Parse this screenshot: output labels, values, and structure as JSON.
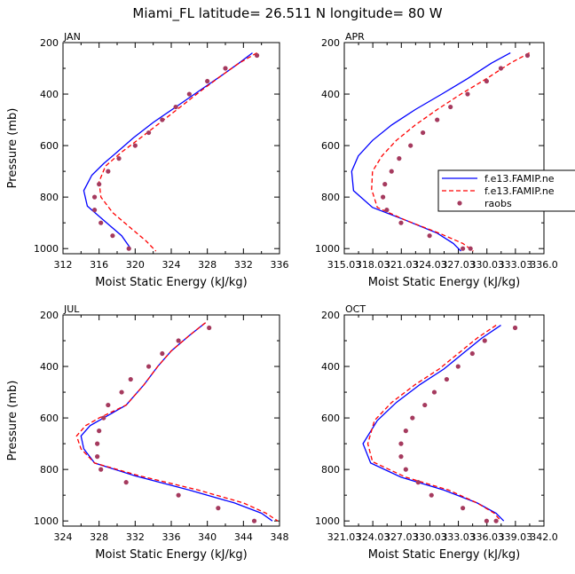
{
  "title": "Miami_FL  latitude= 26.511 N longitude= 80 W",
  "colors": {
    "solid": "#0000ff",
    "dashed": "#ff0000",
    "obs": "#a53a5e"
  },
  "legend": [
    {
      "label": "f.e13.FAMIP.ne",
      "style": "solid"
    },
    {
      "label": "f.e13.FAMIP.ne",
      "style": "dashed"
    },
    {
      "label": "raobs",
      "style": "dots"
    }
  ],
  "chart_data": [
    {
      "type": "line",
      "panel_label": "JAN",
      "xlabel": "Moist Static Energy (kJ/kg)",
      "ylabel": "Pressure (mb)",
      "xlim": [
        312,
        336
      ],
      "ylim": [
        1020,
        200
      ],
      "xtick_values": [
        312,
        316,
        320,
        324,
        328,
        332,
        336
      ],
      "xtick_labels": [
        "312",
        "316",
        "320",
        "324",
        "328",
        "332",
        "336"
      ],
      "ytick_values": [
        200,
        400,
        600,
        800,
        1000
      ],
      "ytick_labels": [
        "200",
        "400",
        "600",
        "800",
        "1000"
      ],
      "series": [
        {
          "style": "solid",
          "x": [
            333.0,
            331.5,
            329.5,
            327.0,
            324.5,
            322.0,
            319.8,
            318.0,
            316.5,
            315.2,
            314.3,
            314.7,
            316.5,
            318.5,
            319.5
          ],
          "y": [
            240,
            280,
            330,
            390,
            450,
            510,
            570,
            625,
            670,
            715,
            775,
            835,
            890,
            950,
            1000
          ]
        },
        {
          "style": "dashed",
          "x": [
            333.5,
            331.5,
            329.5,
            327.2,
            325.0,
            322.8,
            320.6,
            318.5,
            316.7,
            316.0,
            316.2,
            317.5,
            319.5,
            321.2,
            322.3
          ],
          "y": [
            240,
            280,
            330,
            390,
            450,
            510,
            570,
            625,
            680,
            740,
            800,
            860,
            920,
            970,
            1010
          ]
        },
        {
          "style": "dots",
          "x": [
            333.5,
            330.0,
            328.0,
            326.0,
            324.5,
            323.0,
            321.5,
            320.0,
            318.2,
            317.0,
            316.0,
            315.5,
            315.5,
            316.2,
            317.5,
            319.3
          ],
          "y": [
            250,
            300,
            350,
            400,
            450,
            500,
            550,
            600,
            650,
            700,
            750,
            800,
            850,
            900,
            950,
            1000
          ]
        }
      ]
    },
    {
      "type": "line",
      "panel_label": "APR",
      "xlabel": "Moist Static Energy (kJ/kg)",
      "ylabel": "",
      "xlim": [
        315.03,
        336.03
      ],
      "ylim": [
        1020,
        200
      ],
      "xtick_values": [
        315.03,
        318.03,
        321.03,
        324.03,
        327.03,
        330.03,
        333.03,
        336.03
      ],
      "xtick_labels": [
        "315.03",
        "318.03",
        "321.03",
        "324.03",
        "327.03",
        "330.03",
        "333.03",
        "336.0"
      ],
      "ytick_values": [
        200,
        400,
        600,
        800,
        1000
      ],
      "ytick_labels": [
        "200",
        "400",
        "600",
        "800",
        "1000"
      ],
      "series": [
        {
          "style": "solid",
          "x": [
            332.5,
            330.5,
            328.0,
            325.3,
            322.5,
            320.0,
            318.0,
            316.5,
            315.8,
            316.0,
            318.0,
            321.5,
            324.8,
            326.5,
            327.3
          ],
          "y": [
            240,
            280,
            340,
            400,
            460,
            520,
            580,
            640,
            700,
            775,
            840,
            890,
            940,
            980,
            1010
          ]
        },
        {
          "style": "dashed",
          "x": [
            334.5,
            332.5,
            330.0,
            327.3,
            324.8,
            322.5,
            320.5,
            319.0,
            318.0,
            317.9,
            318.5,
            321.5,
            325.0,
            327.5,
            328.6
          ],
          "y": [
            240,
            280,
            340,
            400,
            460,
            520,
            580,
            640,
            700,
            770,
            840,
            890,
            940,
            980,
            1010
          ]
        },
        {
          "style": "dots",
          "x": [
            334.3,
            331.5,
            330.0,
            328.0,
            326.2,
            324.8,
            323.3,
            322.0,
            320.8,
            320.0,
            319.3,
            319.1,
            319.5,
            321.0,
            324.0,
            327.5,
            328.3
          ],
          "y": [
            250,
            300,
            350,
            400,
            450,
            500,
            550,
            600,
            650,
            700,
            750,
            800,
            850,
            900,
            950,
            1000,
            1000
          ]
        }
      ]
    },
    {
      "type": "line",
      "panel_label": "JUL",
      "xlabel": "Moist Static Energy (kJ/kg)",
      "ylabel": "Pressure (mb)",
      "xlim": [
        324,
        348
      ],
      "ylim": [
        1020,
        200
      ],
      "xtick_values": [
        324,
        328,
        332,
        336,
        340,
        344,
        348
      ],
      "xtick_labels": [
        "324",
        "328",
        "332",
        "336",
        "340",
        "344",
        "348"
      ],
      "series": [
        {
          "style": "solid",
          "x": [
            339.8,
            338.0,
            336.0,
            334.5,
            333.0,
            331.0,
            328.5,
            327.0,
            326.0,
            326.3,
            327.5,
            332.0,
            338.0,
            343.0,
            346.0,
            347.2
          ],
          "y": [
            230,
            280,
            340,
            400,
            470,
            550,
            600,
            630,
            670,
            720,
            775,
            825,
            880,
            930,
            970,
            1000
          ]
        },
        {
          "style": "dashed",
          "x": [
            339.8,
            338.0,
            336.0,
            334.5,
            333.0,
            331.0,
            328.0,
            326.5,
            325.5,
            326.0,
            327.5,
            332.5,
            339.0,
            344.0,
            346.5,
            347.8
          ],
          "y": [
            230,
            280,
            340,
            400,
            470,
            550,
            600,
            630,
            670,
            720,
            775,
            825,
            880,
            930,
            970,
            1000
          ]
        },
        {
          "style": "dots",
          "x": [
            340.2,
            336.8,
            335.0,
            333.5,
            331.5,
            330.5,
            329.0,
            328.5,
            328.0,
            327.8,
            327.8,
            328.2,
            331.0,
            336.8,
            341.2,
            345.2
          ],
          "y": [
            250,
            300,
            350,
            400,
            450,
            500,
            550,
            600,
            650,
            700,
            750,
            800,
            850,
            900,
            950,
            1000
          ]
        }
      ]
    },
    {
      "type": "line",
      "panel_label": "OCT",
      "xlabel": "Moist Static Energy (kJ/kg)",
      "ylabel": "",
      "xlim": [
        321.03,
        342.03
      ],
      "ylim": [
        1020,
        200
      ],
      "xtick_values": [
        321.03,
        324.03,
        327.03,
        330.03,
        333.03,
        336.03,
        339.03,
        342.03
      ],
      "xtick_labels": [
        "321.03",
        "324.03",
        "327.03",
        "330.03",
        "333.03",
        "336.03",
        "339.03",
        "342.0"
      ],
      "series": [
        {
          "style": "solid",
          "x": [
            337.5,
            335.5,
            333.5,
            331.5,
            329.0,
            326.5,
            324.5,
            323.0,
            323.8,
            327.0,
            331.5,
            335.0,
            337.0,
            337.8
          ],
          "y": [
            240,
            290,
            350,
            410,
            470,
            540,
            610,
            700,
            775,
            830,
            880,
            930,
            970,
            1000
          ]
        },
        {
          "style": "dashed",
          "x": [
            337.0,
            335.0,
            333.0,
            331.0,
            328.5,
            326.0,
            324.2,
            323.5,
            324.0,
            327.5,
            332.0,
            335.0,
            336.8,
            337.5
          ],
          "y": [
            240,
            290,
            350,
            410,
            470,
            540,
            610,
            700,
            770,
            830,
            880,
            930,
            970,
            1000
          ]
        },
        {
          "style": "dots",
          "x": [
            339.0,
            335.8,
            334.5,
            333.0,
            331.8,
            330.5,
            329.5,
            328.2,
            327.5,
            327.0,
            327.0,
            327.5,
            328.8,
            330.2,
            333.5,
            336.0,
            337.0
          ],
          "y": [
            250,
            300,
            350,
            400,
            450,
            500,
            550,
            600,
            650,
            700,
            750,
            800,
            850,
            900,
            950,
            1000,
            1000
          ]
        }
      ]
    }
  ]
}
